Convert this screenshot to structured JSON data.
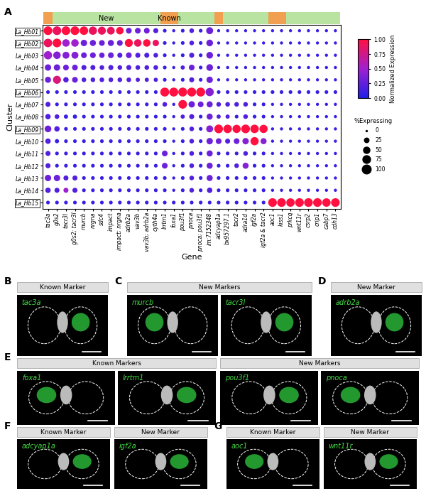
{
  "chart_data": {
    "type": "dot",
    "panel_label": "A",
    "x_label": "Gene",
    "y_label": "Cluster",
    "categories": [
      "tac3a",
      "g0s2",
      "tacr3l",
      "g0s2; tacr3l",
      "murcb",
      "nrgna",
      "sdc4",
      "impact",
      "impact; nrgna",
      "adrb2a",
      "vav3b",
      "vav3b; adrb2a",
      "cyth4a",
      "lrrtm1",
      "foxa1",
      "pou3f1",
      "pnoca",
      "pnoca; pou3f1",
      "im:7152348",
      "adcyap1a",
      "bx957297.1",
      "tacr2",
      "adra1d",
      "igf2a",
      "igf2a & tacr2",
      "aoc1",
      "kiss1",
      "prkcq",
      "wnt11r",
      "csrp2",
      "crip1",
      "cabp7",
      "cdh13"
    ],
    "clusters": [
      "La_Hb01",
      "La_Hb02",
      "La_Hb03",
      "La_Hb04",
      "La_Hb05",
      "La_Hb06",
      "La_Hb07",
      "La_Hb08",
      "La_Hb09",
      "La_Hb10",
      "La_Hb11",
      "La_Hb12",
      "La_Hb13",
      "La_Hb14",
      "La_Hb15"
    ],
    "highlighted_clusters": [
      "La_Hb01",
      "La_Hb02",
      "La_Hb06",
      "La_Hb09",
      "La_Hb15"
    ],
    "annotation_bar": [
      {
        "first": "tac3a",
        "last": "tac3a",
        "color": "#f0a050"
      },
      {
        "first": "g0s2",
        "last": "cyth4a",
        "color": "#b9e3a0",
        "label": "New"
      },
      {
        "first": "lrrtm1",
        "last": "foxa1",
        "color": "#f0a050",
        "label": "Known"
      },
      {
        "first": "pou3f1",
        "last": "im:7152348",
        "color": "#b9e3a0"
      },
      {
        "first": "adcyap1a",
        "last": "adcyap1a",
        "color": "#f0a050"
      },
      {
        "first": "bx957297.1",
        "last": "igf2a & tacr2",
        "color": "#b9e3a0"
      },
      {
        "first": "aoc1",
        "last": "kiss1",
        "color": "#f0a050"
      },
      {
        "first": "prkcq",
        "last": "cdh13",
        "color": "#b9e3a0"
      }
    ],
    "normalized_expression": [
      [
        1.0,
        0.9,
        1.0,
        1.0,
        1.0,
        0.9,
        0.9,
        0.9,
        1.0,
        0.3,
        0.3,
        0.3,
        0.2,
        0.1,
        0.1,
        0.1,
        0.2,
        0.1,
        0.3,
        0.1,
        0.1,
        0.1,
        0.1,
        0.1,
        0.1,
        0.1,
        0.1,
        0.1,
        0.1,
        0.1,
        0.1,
        0.1,
        0.1
      ],
      [
        0.9,
        1.0,
        0.5,
        0.5,
        0.3,
        0.3,
        0.3,
        0.3,
        0.3,
        1.0,
        0.9,
        1.0,
        0.9,
        0.1,
        0.1,
        0.1,
        0.2,
        0.1,
        0.3,
        0.1,
        0.1,
        0.1,
        0.1,
        0.1,
        0.1,
        0.1,
        0.1,
        0.1,
        0.1,
        0.1,
        0.1,
        0.1,
        0.1
      ],
      [
        0.5,
        0.4,
        0.4,
        0.4,
        0.3,
        0.3,
        0.3,
        0.3,
        0.2,
        0.3,
        0.2,
        0.2,
        0.2,
        0.1,
        0.1,
        0.1,
        0.2,
        0.1,
        0.3,
        0.1,
        0.1,
        0.1,
        0.1,
        0.1,
        0.1,
        0.1,
        0.1,
        0.1,
        0.1,
        0.1,
        0.1,
        0.1,
        0.1
      ],
      [
        0.3,
        0.3,
        0.3,
        0.3,
        0.2,
        0.2,
        0.2,
        0.2,
        0.2,
        0.2,
        0.2,
        0.2,
        0.2,
        0.1,
        0.1,
        0.2,
        0.3,
        0.1,
        0.3,
        0.1,
        0.1,
        0.1,
        0.1,
        0.1,
        0.1,
        0.1,
        0.1,
        0.1,
        0.1,
        0.1,
        0.1,
        0.1,
        0.1
      ],
      [
        0.3,
        0.8,
        0.2,
        0.3,
        0.2,
        0.2,
        0.2,
        0.2,
        0.2,
        0.2,
        0.2,
        0.2,
        0.2,
        0.1,
        0.1,
        0.1,
        0.2,
        0.1,
        0.3,
        0.1,
        0.1,
        0.1,
        0.1,
        0.1,
        0.1,
        0.1,
        0.1,
        0.1,
        0.1,
        0.1,
        0.1,
        0.1,
        0.1
      ],
      [
        0.1,
        0.1,
        0.1,
        0.1,
        0.1,
        0.1,
        0.1,
        0.1,
        0.1,
        0.1,
        0.1,
        0.1,
        0.1,
        1.0,
        1.0,
        1.0,
        1.0,
        1.0,
        0.4,
        0.1,
        0.1,
        0.1,
        0.1,
        0.1,
        0.1,
        0.1,
        0.1,
        0.1,
        0.1,
        0.1,
        0.1,
        0.1,
        0.1
      ],
      [
        0.2,
        0.1,
        0.1,
        0.1,
        0.1,
        0.1,
        0.1,
        0.1,
        0.1,
        0.1,
        0.1,
        0.1,
        0.1,
        0.2,
        0.1,
        1.0,
        0.3,
        0.3,
        0.3,
        0.2,
        0.2,
        0.2,
        0.2,
        0.1,
        0.1,
        0.1,
        0.1,
        0.1,
        0.1,
        0.1,
        0.1,
        0.1,
        0.1
      ],
      [
        0.2,
        0.2,
        0.1,
        0.1,
        0.1,
        0.1,
        0.1,
        0.1,
        0.1,
        0.1,
        0.1,
        0.1,
        0.1,
        0.1,
        0.1,
        0.2,
        0.2,
        0.1,
        0.3,
        0.2,
        0.2,
        0.1,
        0.2,
        0.1,
        0.1,
        0.1,
        0.1,
        0.1,
        0.1,
        0.1,
        0.1,
        0.1,
        0.1
      ],
      [
        0.3,
        0.2,
        0.1,
        0.1,
        0.1,
        0.1,
        0.1,
        0.1,
        0.1,
        0.1,
        0.1,
        0.1,
        0.1,
        0.1,
        0.1,
        0.1,
        0.2,
        0.1,
        0.4,
        1.0,
        1.0,
        1.0,
        1.0,
        1.0,
        1.0,
        0.1,
        0.1,
        0.1,
        0.1,
        0.1,
        0.1,
        0.1,
        0.1
      ],
      [
        0.2,
        0.1,
        0.1,
        0.1,
        0.1,
        0.1,
        0.1,
        0.1,
        0.1,
        0.1,
        0.1,
        0.1,
        0.1,
        0.1,
        0.1,
        0.1,
        0.2,
        0.1,
        0.3,
        0.3,
        0.2,
        0.3,
        0.4,
        1.0,
        0.4,
        0.1,
        0.1,
        0.1,
        0.1,
        0.1,
        0.1,
        0.1,
        0.1
      ],
      [
        0.2,
        0.1,
        0.1,
        0.1,
        0.1,
        0.1,
        0.1,
        0.1,
        0.1,
        0.1,
        0.1,
        0.1,
        0.1,
        0.3,
        0.1,
        0.1,
        0.2,
        0.1,
        0.3,
        0.1,
        0.1,
        0.1,
        0.2,
        0.1,
        0.1,
        0.1,
        0.1,
        0.1,
        0.1,
        0.1,
        0.1,
        0.1,
        0.1
      ],
      [
        0.2,
        0.1,
        0.1,
        0.1,
        0.1,
        0.1,
        0.1,
        0.1,
        0.1,
        0.1,
        0.1,
        0.1,
        0.1,
        0.3,
        0.1,
        0.1,
        0.2,
        0.1,
        0.3,
        0.1,
        0.1,
        0.2,
        0.4,
        0.1,
        0.1,
        0.1,
        0.1,
        0.1,
        0.1,
        0.1,
        0.1,
        0.1,
        0.1
      ],
      [
        0.3,
        0.3,
        0.2,
        0.2,
        0.1,
        0.1,
        0.1,
        0.1,
        0.1,
        0.1,
        0.1,
        0.1,
        0.1,
        0.1,
        0.1,
        0.1,
        0.2,
        0.1,
        0.3,
        0.1,
        0.1,
        0.1,
        0.1,
        0.1,
        0.1,
        0.1,
        0.1,
        0.1,
        0.1,
        0.1,
        0.1,
        0.1,
        0.1
      ],
      [
        0.2,
        0.2,
        0.5,
        0.2,
        0.1,
        0.1,
        0.1,
        0.1,
        0.1,
        0.1,
        0.1,
        0.1,
        0.1,
        0.1,
        0.1,
        0.1,
        0.2,
        0.1,
        0.2,
        0.1,
        0.1,
        0.1,
        0.1,
        0.1,
        0.1,
        0.1,
        0.1,
        0.1,
        0.1,
        0.1,
        0.1,
        0.1,
        0.1
      ],
      [
        0.1,
        0.1,
        0.1,
        0.1,
        0.1,
        0.1,
        0.1,
        0.1,
        0.1,
        0.1,
        0.1,
        0.1,
        0.1,
        0.1,
        0.1,
        0.1,
        0.1,
        0.1,
        0.1,
        0.1,
        0.1,
        0.1,
        0.1,
        0.1,
        0.1,
        1.0,
        1.0,
        1.0,
        1.0,
        1.0,
        1.0,
        1.0,
        1.0
      ]
    ],
    "pct_expressing": [
      [
        95,
        95,
        95,
        95,
        90,
        85,
        80,
        75,
        70,
        40,
        40,
        40,
        30,
        15,
        10,
        15,
        25,
        15,
        60,
        10,
        10,
        10,
        10,
        10,
        10,
        10,
        10,
        10,
        10,
        10,
        10,
        10,
        10
      ],
      [
        90,
        95,
        70,
        70,
        50,
        45,
        40,
        45,
        40,
        80,
        70,
        70,
        50,
        15,
        10,
        15,
        25,
        15,
        55,
        10,
        10,
        10,
        10,
        10,
        10,
        10,
        10,
        10,
        10,
        10,
        10,
        10,
        10
      ],
      [
        85,
        70,
        60,
        60,
        40,
        40,
        35,
        40,
        30,
        40,
        30,
        30,
        25,
        15,
        10,
        15,
        30,
        15,
        55,
        10,
        10,
        10,
        10,
        10,
        10,
        10,
        10,
        10,
        10,
        10,
        10,
        10,
        10
      ],
      [
        50,
        50,
        40,
        40,
        30,
        30,
        25,
        30,
        25,
        30,
        25,
        25,
        25,
        15,
        10,
        20,
        40,
        15,
        55,
        10,
        10,
        10,
        10,
        10,
        10,
        10,
        10,
        10,
        10,
        10,
        10,
        10,
        10
      ],
      [
        45,
        80,
        35,
        40,
        25,
        25,
        25,
        25,
        25,
        25,
        20,
        20,
        20,
        15,
        10,
        15,
        30,
        15,
        50,
        10,
        10,
        10,
        10,
        10,
        10,
        10,
        10,
        10,
        10,
        10,
        10,
        10,
        10
      ],
      [
        15,
        15,
        15,
        15,
        15,
        15,
        15,
        15,
        15,
        15,
        15,
        15,
        15,
        100,
        100,
        100,
        100,
        100,
        85,
        15,
        15,
        15,
        15,
        15,
        15,
        15,
        15,
        15,
        15,
        15,
        15,
        15,
        15
      ],
      [
        30,
        15,
        15,
        15,
        15,
        15,
        15,
        15,
        15,
        15,
        15,
        15,
        15,
        25,
        10,
        95,
        50,
        40,
        45,
        25,
        25,
        25,
        25,
        15,
        15,
        10,
        10,
        10,
        10,
        10,
        10,
        10,
        10
      ],
      [
        35,
        25,
        20,
        20,
        15,
        15,
        15,
        15,
        15,
        15,
        15,
        15,
        15,
        15,
        10,
        20,
        30,
        15,
        45,
        20,
        20,
        15,
        25,
        15,
        15,
        10,
        10,
        10,
        10,
        10,
        10,
        10,
        10
      ],
      [
        55,
        35,
        15,
        15,
        15,
        15,
        15,
        15,
        15,
        15,
        15,
        15,
        15,
        15,
        10,
        15,
        25,
        15,
        60,
        95,
        90,
        85,
        95,
        90,
        85,
        10,
        10,
        10,
        10,
        10,
        10,
        10,
        10
      ],
      [
        35,
        20,
        15,
        15,
        15,
        15,
        15,
        15,
        15,
        15,
        15,
        15,
        15,
        15,
        10,
        15,
        25,
        15,
        50,
        40,
        30,
        40,
        50,
        85,
        45,
        10,
        10,
        10,
        10,
        10,
        10,
        10,
        10
      ],
      [
        30,
        15,
        15,
        15,
        15,
        15,
        15,
        15,
        15,
        15,
        15,
        15,
        15,
        40,
        10,
        15,
        25,
        15,
        45,
        15,
        15,
        15,
        25,
        15,
        15,
        10,
        10,
        10,
        10,
        10,
        10,
        10,
        10
      ],
      [
        30,
        15,
        15,
        15,
        15,
        15,
        15,
        15,
        15,
        15,
        15,
        15,
        15,
        40,
        10,
        15,
        25,
        15,
        45,
        15,
        15,
        25,
        45,
        15,
        15,
        10,
        10,
        10,
        10,
        10,
        10,
        10,
        10
      ],
      [
        50,
        50,
        30,
        30,
        15,
        15,
        15,
        15,
        15,
        15,
        15,
        15,
        15,
        15,
        10,
        15,
        25,
        15,
        45,
        15,
        15,
        15,
        15,
        15,
        15,
        10,
        10,
        10,
        10,
        10,
        10,
        10,
        10
      ],
      [
        35,
        30,
        30,
        30,
        15,
        15,
        15,
        15,
        15,
        15,
        15,
        15,
        15,
        15,
        10,
        15,
        25,
        15,
        35,
        15,
        15,
        15,
        15,
        15,
        15,
        10,
        10,
        10,
        10,
        10,
        10,
        10,
        10
      ],
      [
        15,
        15,
        15,
        15,
        15,
        15,
        15,
        15,
        15,
        15,
        15,
        15,
        15,
        15,
        15,
        15,
        15,
        15,
        15,
        15,
        15,
        15,
        15,
        15,
        15,
        95,
        95,
        90,
        95,
        95,
        95,
        90,
        95
      ]
    ],
    "colorbar": {
      "label": "Normalized Expression",
      "range": [
        0,
        1
      ],
      "ticks": [
        {
          "value": 0,
          "label": "0.00"
        },
        {
          "value": 0.25,
          "label": "0.25"
        },
        {
          "value": 0.5,
          "label": "0.50"
        },
        {
          "value": 0.75,
          "label": "0.75"
        },
        {
          "value": 1,
          "label": "1.00"
        }
      ]
    },
    "size_legend": {
      "title": "%Expressing",
      "values": [
        0,
        25,
        50,
        75,
        100
      ]
    }
  },
  "image_panels": [
    [
      {
        "letter": "B",
        "groups": [
          {
            "header": "Known Marker",
            "genes": [
              "tac3a"
            ]
          }
        ]
      },
      {
        "letter": "C",
        "groups": [
          {
            "header": "New Markers",
            "genes": [
              "murcb",
              "tacr3l"
            ]
          }
        ]
      },
      {
        "letter": "D",
        "groups": [
          {
            "header": "New Marker",
            "genes": [
              "adrb2a"
            ]
          }
        ]
      }
    ],
    [
      {
        "letter": "E",
        "groups": [
          {
            "header": "Known Markers",
            "genes": [
              "foxa1",
              "lrrtm1"
            ]
          },
          {
            "header": "New Markers",
            "genes": [
              "pou3f1",
              "pnoca"
            ]
          }
        ]
      }
    ],
    [
      {
        "letter": "F",
        "groups": [
          {
            "header": "Known Marker",
            "genes": [
              "adcyap1a"
            ]
          },
          {
            "header": "New Marker",
            "genes": [
              "igf2a"
            ]
          }
        ]
      },
      {
        "letter": "G",
        "groups": [
          {
            "header": "Known Marker",
            "genes": [
              "aoc1"
            ]
          },
          {
            "header": "New Marker",
            "genes": [
              "wnt11r"
            ]
          }
        ]
      }
    ]
  ]
}
